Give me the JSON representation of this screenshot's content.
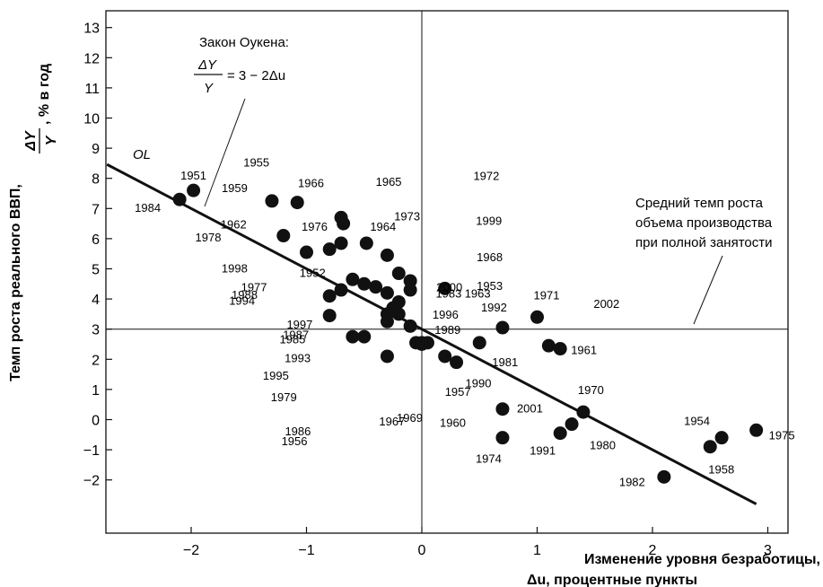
{
  "chart_data": {
    "type": "scatter",
    "title": "",
    "xlabel_line1": "Изменение уровня безработицы,",
    "xlabel_line2": "Δu, процентные пункты",
    "ylabel_line1": "Темп роста реального ВВП,",
    "ylabel_frac_num": "ΔY",
    "ylabel_frac_den": "Y",
    "ylabel_suffix": ", % в год",
    "xlim": [
      -2.8,
      3.1
    ],
    "ylim": [
      -2.8,
      13.5
    ],
    "x_ticks": [
      -2,
      -1,
      0,
      1,
      2,
      3
    ],
    "x_tick_labels": [
      "−2",
      "−1",
      "0",
      "1",
      "2",
      "3"
    ],
    "y_ticks": [
      -2,
      -1,
      0,
      1,
      2,
      3,
      4,
      5,
      6,
      7,
      8,
      9,
      10,
      11,
      12,
      13
    ],
    "y_tick_labels": [
      "−2",
      "−1",
      "0",
      "1",
      "2",
      "3",
      "4",
      "5",
      "6",
      "7",
      "8",
      "9",
      "10",
      "11",
      "12",
      "13"
    ],
    "points": [
      {
        "year": "1951",
        "x": -1.98,
        "y": 7.6
      },
      {
        "year": "1984",
        "x": -2.1,
        "y": 7.3
      },
      {
        "year": "1955",
        "x": -1.08,
        "y": 7.2
      },
      {
        "year": "1959",
        "x": -1.3,
        "y": 7.25
      },
      {
        "year": "1966",
        "x": -0.7,
        "y": 6.7
      },
      {
        "year": "1965",
        "x": -0.68,
        "y": 6.5
      },
      {
        "year": "1962",
        "x": -1.2,
        "y": 6.1
      },
      {
        "year": "1976",
        "x": -0.7,
        "y": 5.85
      },
      {
        "year": "1964",
        "x": -0.48,
        "y": 5.85
      },
      {
        "year": "1978",
        "x": -1.0,
        "y": 5.55
      },
      {
        "year": "1973",
        "x": -0.8,
        "y": 5.65
      },
      {
        "year": "1972",
        "x": -0.3,
        "y": 5.45
      },
      {
        "year": "1999",
        "x": -0.2,
        "y": 4.85
      },
      {
        "year": "1968",
        "x": -0.1,
        "y": 4.6
      },
      {
        "year": "1953",
        "x": -0.1,
        "y": 4.3
      },
      {
        "year": "1998",
        "x": -0.6,
        "y": 4.65
      },
      {
        "year": "1952",
        "x": -0.5,
        "y": 4.5
      },
      {
        "year": "1977",
        "x": -0.4,
        "y": 4.4
      },
      {
        "year": "1988",
        "x": -0.7,
        "y": 4.3
      },
      {
        "year": "1994",
        "x": -0.8,
        "y": 4.1
      },
      {
        "year": "1983",
        "x": -0.3,
        "y": 4.2
      },
      {
        "year": "2000",
        "x": -0.2,
        "y": 3.9
      },
      {
        "year": "1996",
        "x": -0.25,
        "y": 3.7
      },
      {
        "year": "1997",
        "x": -0.3,
        "y": 3.5
      },
      {
        "year": "1987",
        "x": -0.8,
        "y": 3.45
      },
      {
        "year": "1989",
        "x": -0.2,
        "y": 3.5
      },
      {
        "year": "1963",
        "x": 0.2,
        "y": 4.35
      },
      {
        "year": "1985",
        "x": -0.3,
        "y": 3.25
      },
      {
        "year": "1993",
        "x": -0.1,
        "y": 3.1
      },
      {
        "year": "1995",
        "x": -0.6,
        "y": 2.75
      },
      {
        "year": "1979",
        "x": -0.5,
        "y": 2.75
      },
      {
        "year": "1986",
        "x": -0.3,
        "y": 2.1
      },
      {
        "year": "1969",
        "x": 0.0,
        "y": 2.55
      },
      {
        "year": "1967",
        "x": 0.05,
        "y": 2.55
      },
      {
        "year": "1956",
        "x": -0.05,
        "y": 2.55
      },
      {
        "year": "1957",
        "x": 0.2,
        "y": 2.1
      },
      {
        "year": "1990",
        "x": 0.3,
        "y": 1.9
      },
      {
        "year": "1960",
        "x": 0.0,
        "y": 2.5
      },
      {
        "year": "1992",
        "x": 0.7,
        "y": 3.05
      },
      {
        "year": "1971",
        "x": 1.0,
        "y": 3.4
      },
      {
        "year": "1981",
        "x": 0.5,
        "y": 2.55
      },
      {
        "year": "2002",
        "x": 1.1,
        "y": 2.45
      },
      {
        "year": "1961",
        "x": 1.2,
        "y": 2.35
      },
      {
        "year": "2001",
        "x": 0.7,
        "y": 0.35
      },
      {
        "year": "1970",
        "x": 1.4,
        "y": 0.25
      },
      {
        "year": "1980",
        "x": 1.3,
        "y": -0.15
      },
      {
        "year": "1991",
        "x": 1.2,
        "y": -0.45
      },
      {
        "year": "1974",
        "x": 0.7,
        "y": -0.6
      },
      {
        "year": "1954",
        "x": 2.6,
        "y": -0.6
      },
      {
        "year": "1975",
        "x": 2.9,
        "y": -0.35
      },
      {
        "year": "1958",
        "x": 2.5,
        "y": -0.9
      },
      {
        "year": "1982",
        "x": 2.1,
        "y": -1.9
      }
    ],
    "okun_line": {
      "label": "OL",
      "intercept": 3,
      "slope": -2
    },
    "reference_line_y": 3,
    "annotations": {
      "okun_law_title": "Закон Оукена:",
      "okun_frac_num": "ΔY",
      "okun_frac_den": "Y",
      "okun_formula_rhs": "= 3 − 2Δu",
      "avg_growth_line1": "Средний темп роста",
      "avg_growth_line2": "объема производства",
      "avg_growth_line3": "при полной занятости"
    }
  }
}
